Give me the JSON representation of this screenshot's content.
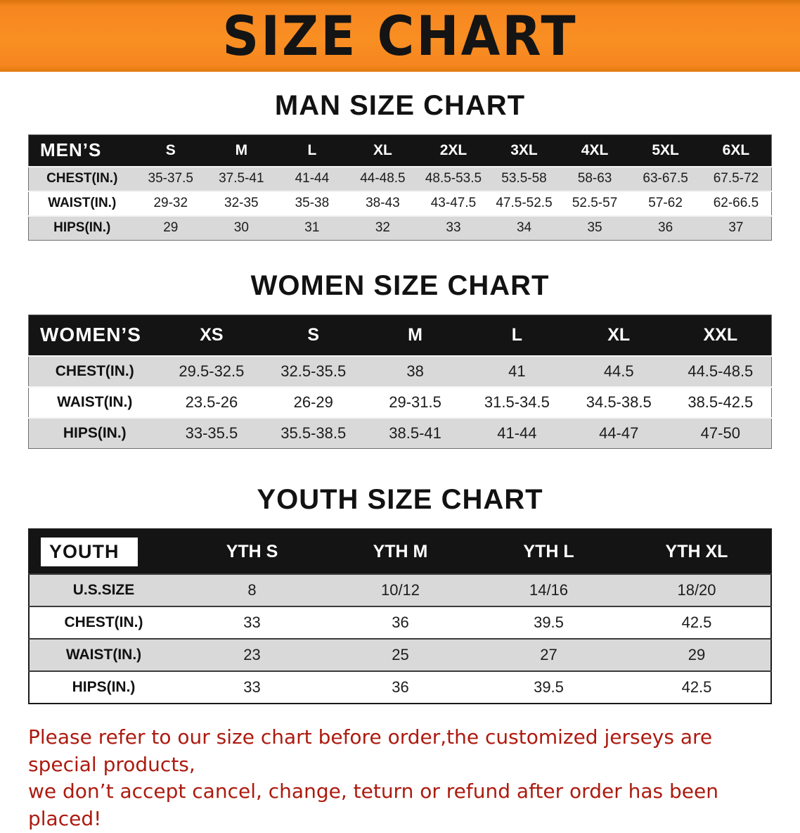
{
  "banner": {
    "title": "SIZE CHART"
  },
  "men": {
    "title": "MAN SIZE CHART",
    "table": {
      "header": [
        "MEN’S",
        "S",
        "M",
        "L",
        "XL",
        "2XL",
        "3XL",
        "4XL",
        "5XL",
        "6XL"
      ],
      "rows": [
        [
          "CHEST(IN.)",
          "35-37.5",
          "37.5-41",
          "41-44",
          "44-48.5",
          "48.5-53.5",
          "53.5-58",
          "58-63",
          "63-67.5",
          "67.5-72"
        ],
        [
          "WAIST(IN.)",
          "29-32",
          "32-35",
          "35-38",
          "38-43",
          "43-47.5",
          "47.5-52.5",
          "52.5-57",
          "57-62",
          "62-66.5"
        ],
        [
          "HIPS(IN.)",
          "29",
          "30",
          "31",
          "32",
          "33",
          "34",
          "35",
          "36",
          "37"
        ]
      ]
    }
  },
  "women": {
    "title": "WOMEN SIZE CHART",
    "table": {
      "header": [
        "WOMEN’S",
        "XS",
        "S",
        "M",
        "L",
        "XL",
        "XXL"
      ],
      "rows": [
        [
          "CHEST(IN.)",
          "29.5-32.5",
          "32.5-35.5",
          "38",
          "41",
          "44.5",
          "44.5-48.5"
        ],
        [
          "WAIST(IN.)",
          "23.5-26",
          "26-29",
          "29-31.5",
          "31.5-34.5",
          "34.5-38.5",
          "38.5-42.5"
        ],
        [
          "HIPS(IN.)",
          "33-35.5",
          "35.5-38.5",
          "38.5-41",
          "41-44",
          "44-47",
          "47-50"
        ]
      ]
    }
  },
  "youth": {
    "title": "YOUTH SIZE CHART",
    "table": {
      "header": [
        "YOUTH",
        "YTH S",
        "YTH M",
        "YTH L",
        "YTH XL"
      ],
      "rows": [
        [
          "U.S.SIZE",
          "8",
          "10/12",
          "14/16",
          "18/20"
        ],
        [
          "CHEST(IN.)",
          "33",
          "36",
          "39.5",
          "42.5"
        ],
        [
          "WAIST(IN.)",
          "23",
          "25",
          "27",
          "29"
        ],
        [
          "HIPS(IN.)",
          "33",
          "36",
          "39.5",
          "42.5"
        ]
      ]
    }
  },
  "footer": {
    "line1": "Please refer to our size chart before order,the customized jerseys are special products,",
    "line2": "we don’t accept cancel, change, teturn or refund after order has been placed!"
  },
  "colors": {
    "banner_bg": "#F6861F",
    "table_header_bg": "#141414",
    "row_alt_bg": "#D9D9D9",
    "footer_text": "#AD1A0F"
  }
}
